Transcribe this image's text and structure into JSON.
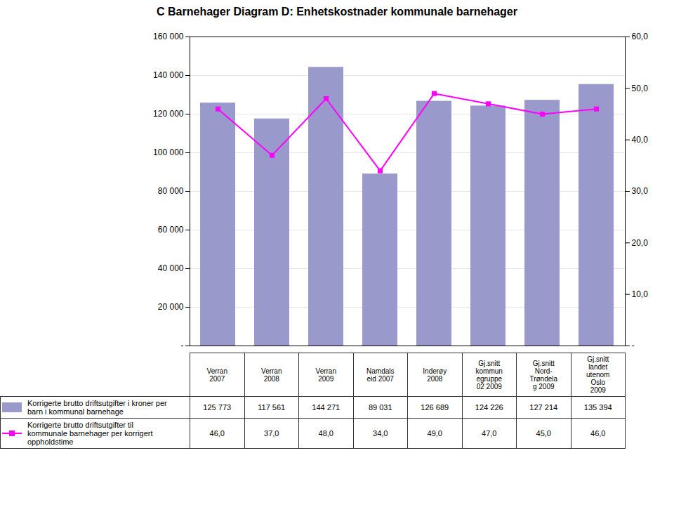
{
  "chart_data": {
    "type": "bar",
    "title": "C Barnehager Diagram D: Enhetskostnader kommunale barnehager",
    "categories": [
      "Verran\n2007",
      "Verran\n2008",
      "Verran\n2009",
      "Namdals\neid 2007",
      "Inderøy\n2008",
      "Gj.snitt\nkommun\negruppe\n02 2009",
      "Gj.snitt\nNord-\nTrøndela\ng 2009",
      "Gj.snitt\nlandet\nutenom\nOslo\n2009"
    ],
    "series": [
      {
        "name": "Korrigerte brutto driftsutgifter i kroner per\nbarn i kommunal barnehage",
        "type": "bar",
        "color": "#9999CC",
        "values": [
          125773,
          117561,
          144271,
          89031,
          126689,
          124226,
          127214,
          135394
        ],
        "value_labels": [
          "125 773",
          "117 561",
          "144 271",
          "89 031",
          "126 689",
          "124 226",
          "127 214",
          "135 394"
        ]
      },
      {
        "name": "Korrigerte brutto driftsutgifter til\nkommunale barnehager per korrigert\noppholdstime",
        "type": "line",
        "axis": "y2",
        "color": "#FF00FF",
        "marker": "square",
        "values": [
          46.0,
          37.0,
          48.0,
          34.0,
          49.0,
          47.0,
          45.0,
          46.0
        ],
        "value_labels": [
          "46,0",
          "37,0",
          "48,0",
          "34,0",
          "49,0",
          "47,0",
          "45,0",
          "46,0"
        ]
      }
    ],
    "ylim": [
      0,
      160000
    ],
    "yticks": [
      {
        "value": 0,
        "label": "-"
      },
      {
        "value": 20000,
        "label": "20 000"
      },
      {
        "value": 40000,
        "label": "40 000"
      },
      {
        "value": 60000,
        "label": "60 000"
      },
      {
        "value": 80000,
        "label": "80 000"
      },
      {
        "value": 100000,
        "label": "100 000"
      },
      {
        "value": 120000,
        "label": "120 000"
      },
      {
        "value": 140000,
        "label": "140 000"
      },
      {
        "value": 160000,
        "label": "160 000"
      }
    ],
    "y2lim": [
      0,
      60.0
    ],
    "y2ticks": [
      {
        "value": 0,
        "label": "-"
      },
      {
        "value": 10.0,
        "label": "10,0"
      },
      {
        "value": 20.0,
        "label": "20,0"
      },
      {
        "value": 30.0,
        "label": "30,0"
      },
      {
        "value": 40.0,
        "label": "40,0"
      },
      {
        "value": 50.0,
        "label": "50,0"
      },
      {
        "value": 60.0,
        "label": "60,0"
      }
    ],
    "grid": true,
    "data_labels": true,
    "tick_labels": "y"
  }
}
